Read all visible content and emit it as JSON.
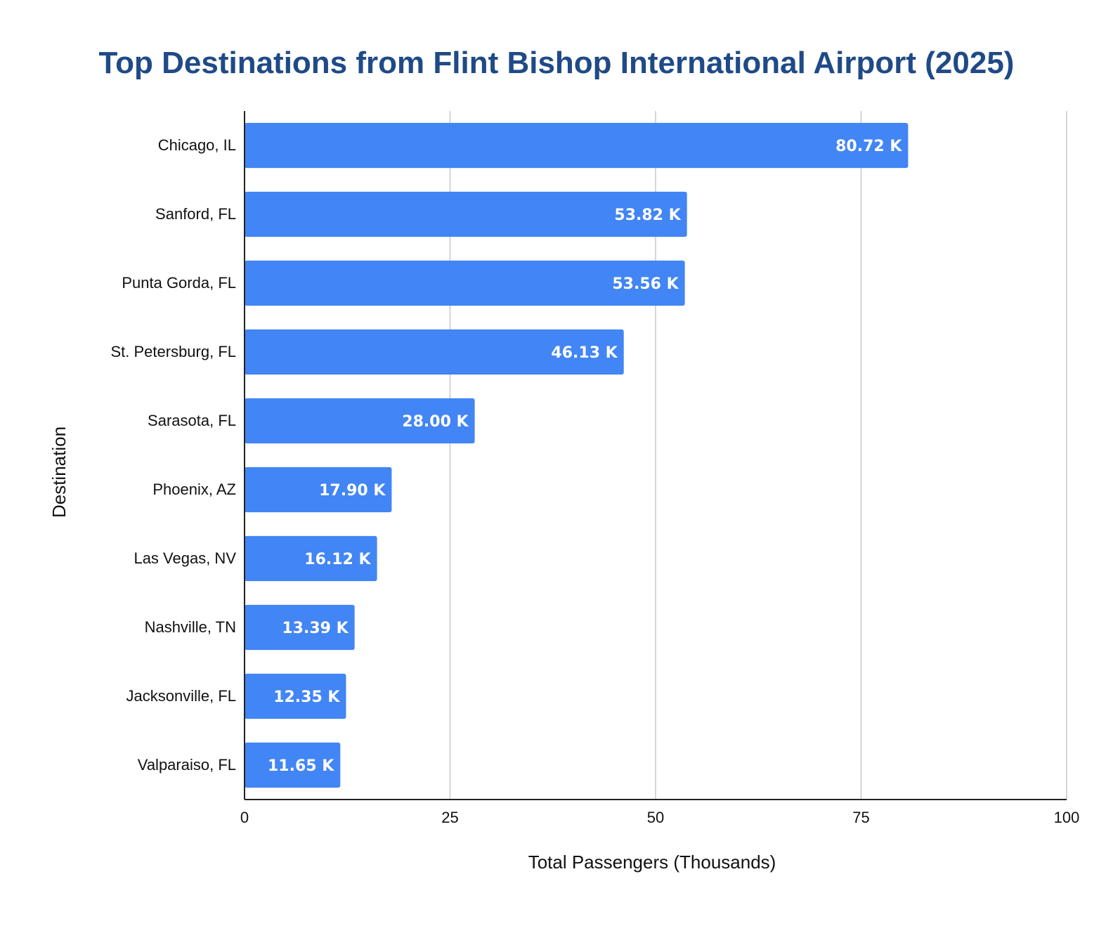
{
  "chart_data": {
    "type": "bar",
    "orientation": "horizontal",
    "title": "Top Destinations from Flint Bishop International Airport (2025)",
    "xlabel": "Total Passengers (Thousands)",
    "ylabel": "Destination",
    "xlim": [
      0,
      100
    ],
    "xticks": [
      0,
      25,
      50,
      75,
      100
    ],
    "xtick_labels": [
      "0",
      "25",
      "50",
      "75",
      "100"
    ],
    "grid": "vertical",
    "legend": "none",
    "bar_color": "#4285f4",
    "categories": [
      "Chicago, IL",
      "Sanford, FL",
      "Punta Gorda, FL",
      "St. Petersburg, FL",
      "Sarasota, FL",
      "Phoenix, AZ",
      "Las Vegas, NV",
      "Nashville, TN",
      "Jacksonville, FL",
      "Valparaiso, FL"
    ],
    "values": [
      80.72,
      53.82,
      53.56,
      46.13,
      28.0,
      17.9,
      16.12,
      13.39,
      12.35,
      11.65
    ],
    "data_labels": [
      "80.72 K",
      "53.82 K",
      "53.56 K",
      "46.13 K",
      "28.00 K",
      "17.90 K",
      "16.12 K",
      "13.39 K",
      "12.35 K",
      "11.65 K"
    ]
  }
}
